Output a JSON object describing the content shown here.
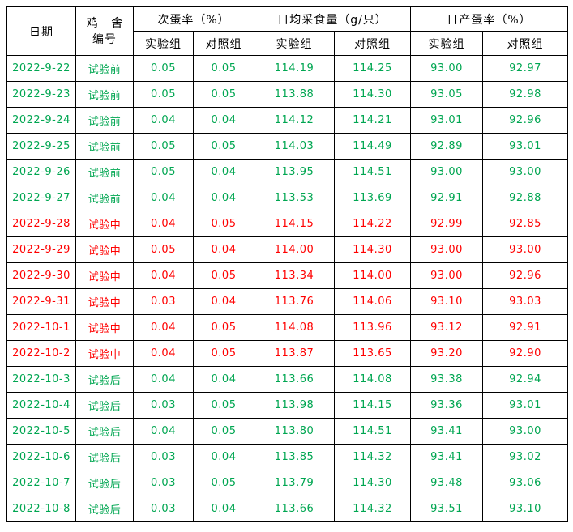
{
  "colors": {
    "phase_before": "#00A651",
    "phase_during": "#FF0000",
    "phase_after": "#00A651",
    "header_text": "#000000",
    "grid_border": "#000000",
    "background": "#FFFFFF"
  },
  "table": {
    "header": {
      "col_date": "日期",
      "col_house_line1": "鸡 舍",
      "col_house_line2": "编号",
      "groups": [
        {
          "label": "次蛋率（%）",
          "sub": [
            "实验组",
            "对照组"
          ]
        },
        {
          "label": "日均采食量（g/只）",
          "sub": [
            "实验组",
            "对照组"
          ]
        },
        {
          "label": "日产蛋率（%）",
          "sub": [
            "实验组",
            "对照组"
          ]
        }
      ]
    },
    "rows": [
      {
        "date": "2022-9-22",
        "phase": "试验前",
        "color": "green",
        "values": [
          "0.05",
          "0.05",
          "114.19",
          "114.25",
          "93.00",
          "92.97"
        ]
      },
      {
        "date": "2022-9-23",
        "phase": "试验前",
        "color": "green",
        "values": [
          "0.05",
          "0.05",
          "113.88",
          "114.30",
          "93.05",
          "92.98"
        ]
      },
      {
        "date": "2022-9-24",
        "phase": "试验前",
        "color": "green",
        "values": [
          "0.04",
          "0.04",
          "114.12",
          "114.21",
          "93.01",
          "92.96"
        ]
      },
      {
        "date": "2022-9-25",
        "phase": "试验前",
        "color": "green",
        "values": [
          "0.05",
          "0.05",
          "114.03",
          "114.49",
          "92.89",
          "93.01"
        ]
      },
      {
        "date": "2022-9-26",
        "phase": "试验前",
        "color": "green",
        "values": [
          "0.05",
          "0.04",
          "113.95",
          "114.51",
          "93.00",
          "93.00"
        ]
      },
      {
        "date": "2022-9-27",
        "phase": "试验前",
        "color": "green",
        "values": [
          "0.04",
          "0.04",
          "113.53",
          "113.69",
          "92.91",
          "92.88"
        ]
      },
      {
        "date": "2022-9-28",
        "phase": "试验中",
        "color": "red",
        "values": [
          "0.04",
          "0.05",
          "114.15",
          "114.22",
          "92.99",
          "92.85"
        ]
      },
      {
        "date": "2022-9-29",
        "phase": "试验中",
        "color": "red",
        "values": [
          "0.05",
          "0.04",
          "114.00",
          "114.30",
          "93.00",
          "93.00"
        ]
      },
      {
        "date": "2022-9-30",
        "phase": "试验中",
        "color": "red",
        "values": [
          "0.04",
          "0.05",
          "113.34",
          "114.00",
          "93.00",
          "92.96"
        ]
      },
      {
        "date": "2022-9-31",
        "phase": "试验中",
        "color": "red",
        "values": [
          "0.03",
          "0.04",
          "113.76",
          "114.06",
          "93.10",
          "93.03"
        ]
      },
      {
        "date": "2022-10-1",
        "phase": "试验中",
        "color": "red",
        "values": [
          "0.04",
          "0.05",
          "114.08",
          "113.96",
          "93.12",
          "92.91"
        ]
      },
      {
        "date": "2022-10-2",
        "phase": "试验中",
        "color": "red",
        "values": [
          "0.04",
          "0.05",
          "113.87",
          "113.65",
          "93.20",
          "92.90"
        ]
      },
      {
        "date": "2022-10-3",
        "phase": "试验后",
        "color": "green",
        "values": [
          "0.04",
          "0.04",
          "113.66",
          "114.08",
          "93.38",
          "92.94"
        ]
      },
      {
        "date": "2022-10-4",
        "phase": "试验后",
        "color": "green",
        "values": [
          "0.03",
          "0.05",
          "113.98",
          "114.15",
          "93.36",
          "93.01"
        ]
      },
      {
        "date": "2022-10-5",
        "phase": "试验后",
        "color": "green",
        "values": [
          "0.04",
          "0.05",
          "113.80",
          "114.51",
          "93.41",
          "93.00"
        ]
      },
      {
        "date": "2022-10-6",
        "phase": "试验后",
        "color": "green",
        "values": [
          "0.03",
          "0.04",
          "113.85",
          "114.32",
          "93.41",
          "93.02"
        ]
      },
      {
        "date": "2022-10-7",
        "phase": "试验后",
        "color": "green",
        "values": [
          "0.03",
          "0.05",
          "113.79",
          "114.30",
          "93.48",
          "93.06"
        ]
      },
      {
        "date": "2022-10-8",
        "phase": "试验后",
        "color": "green",
        "values": [
          "0.03",
          "0.04",
          "113.66",
          "114.32",
          "93.51",
          "93.10"
        ]
      }
    ],
    "cell_names": [
      "date-cell",
      "phase-cell",
      "defect-rate-exp-cell",
      "defect-rate-ctrl-cell",
      "feed-intake-exp-cell",
      "feed-intake-ctrl-cell",
      "lay-rate-exp-cell",
      "lay-rate-ctrl-cell"
    ]
  }
}
